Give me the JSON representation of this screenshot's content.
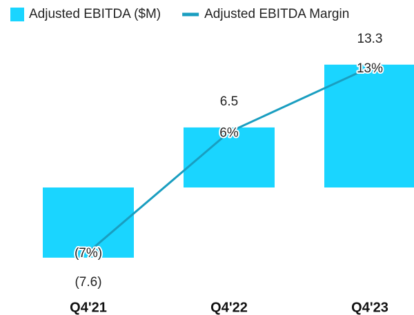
{
  "chart_data": {
    "type": "bar",
    "categories": [
      "Q4'21",
      "Q4'22",
      "Q4'23"
    ],
    "series": [
      {
        "name": "Adjusted EBITDA ($M)",
        "color": "#1ad5ff",
        "values": [
          -7.6,
          6.5,
          13.3
        ],
        "value_labels": [
          "(7.6)",
          "6.5",
          "13.3"
        ]
      },
      {
        "name": "Adjusted EBITDA Margin",
        "type": "line",
        "axis": "y2",
        "color": "#1a9ec0",
        "values": [
          -7,
          6,
          13
        ],
        "value_labels": [
          "(7%)",
          "6%",
          "13%"
        ]
      }
    ],
    "ylim": [
      -10,
      15
    ],
    "y2lim": [
      -10,
      15
    ]
  }
}
